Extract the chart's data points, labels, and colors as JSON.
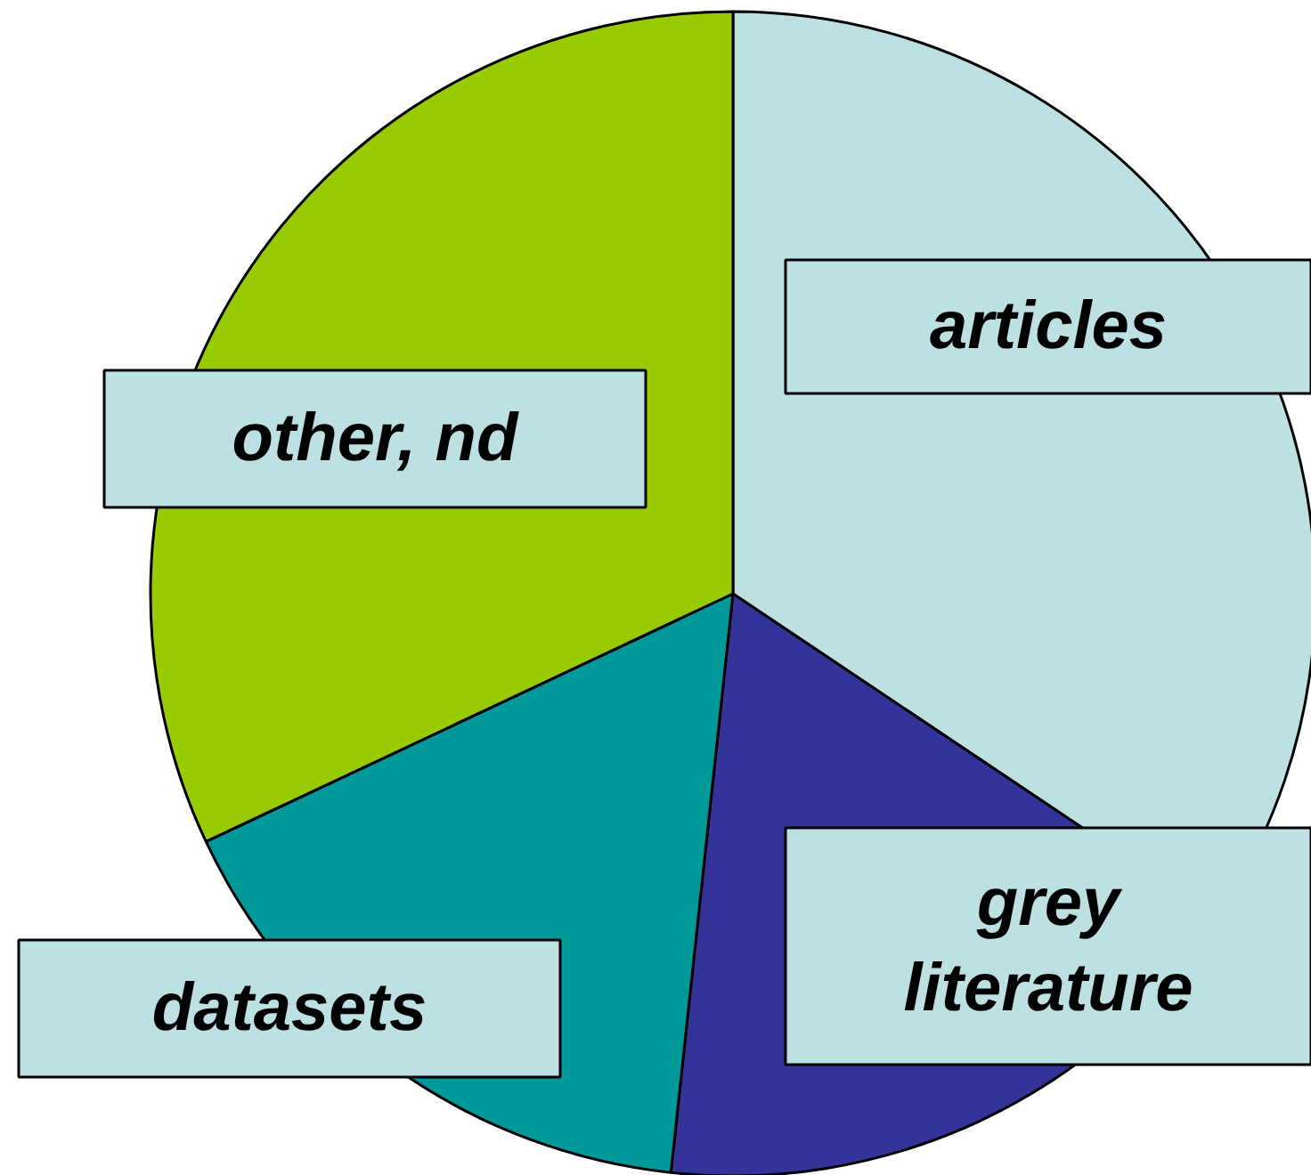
{
  "chart_data": {
    "type": "pie",
    "categories": [
      "articles",
      "grey\nliterature",
      "datasets",
      "other, nd"
    ],
    "values": [
      34.4,
      17.3,
      16.3,
      32.0
    ],
    "colors": [
      "#bde0e3",
      "#333399",
      "#009999",
      "#99cc00"
    ]
  }
}
